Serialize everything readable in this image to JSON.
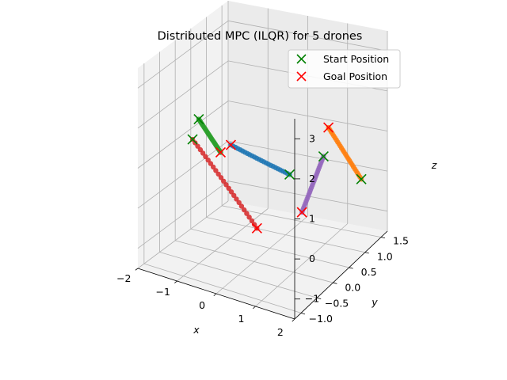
{
  "chart_data": {
    "type": "scatter",
    "projection": "3d",
    "title": "Distributed MPC (ILQR) for 5 drones",
    "xlabel": "x",
    "ylabel": "y",
    "zlabel": "z",
    "xticks": [
      "−2",
      "−1",
      "0",
      "1",
      "2"
    ],
    "yticks": [
      "−1.0",
      "−0.5",
      "0.0",
      "0.5",
      "1.0",
      "1.5"
    ],
    "zticks": [
      "−1",
      "0",
      "1",
      "2",
      "3"
    ],
    "xlim": [
      -2,
      2
    ],
    "ylim": [
      -1.2,
      1.7
    ],
    "zlim": [
      -1.5,
      3.5
    ],
    "grid": true,
    "legend_position": "top-right",
    "legend": [
      {
        "label": "Start Position",
        "marker": "x",
        "color": "#008000"
      },
      {
        "label": "Goal Position",
        "marker": "x",
        "color": "#ff0000"
      }
    ],
    "series": [
      {
        "color": "#1f77b4",
        "start": [
          0.57,
          0.41,
          0.54
        ],
        "goal": [
          -0.43,
          -0.2,
          1.43
        ]
      },
      {
        "color": "#ff7f0e",
        "start": [
          1.77,
          1.17,
          0.15
        ],
        "goal": [
          0.91,
          1.21,
          1.23
        ]
      },
      {
        "color": "#2ca02c",
        "start": [
          -1.38,
          -0.03,
          1.71
        ],
        "goal": [
          -0.73,
          -0.15,
          1.13
        ]
      },
      {
        "color": "#d62728",
        "start": [
          -1.6,
          0.05,
          1.1
        ],
        "goal": [
          0.73,
          -0.82,
          0.1
        ]
      },
      {
        "color": "#9467bd",
        "start": [
          1.01,
          0.93,
          0.73
        ],
        "goal": [
          0.49,
          0.9,
          -0.76
        ]
      }
    ]
  }
}
